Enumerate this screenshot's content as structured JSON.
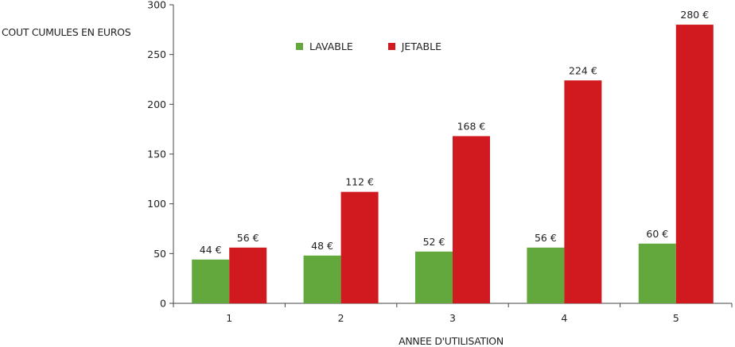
{
  "chart_data": {
    "type": "bar",
    "categories": [
      "1",
      "2",
      "3",
      "4",
      "5"
    ],
    "series": [
      {
        "name": "LAVABLE",
        "color": "#62a83c",
        "values": [
          44,
          48,
          52,
          56,
          60
        ],
        "labels": [
          "44 €",
          "48 €",
          "52 €",
          "56 €",
          "60 €"
        ]
      },
      {
        "name": "JETABLE",
        "color": "#d01a20",
        "values": [
          56,
          112,
          168,
          224,
          280
        ],
        "labels": [
          "56 €",
          "112 €",
          "168 €",
          "224 €",
          "280 €"
        ]
      }
    ],
    "ylabel": "COUT CUMULES EN EUROS",
    "xlabel": "ANNEE D'UTILISATION",
    "ylim": [
      0,
      300
    ],
    "yticks": [
      "0",
      "50",
      "100",
      "150",
      "200",
      "250",
      "300"
    ],
    "grid": false,
    "legend_position": "top"
  }
}
